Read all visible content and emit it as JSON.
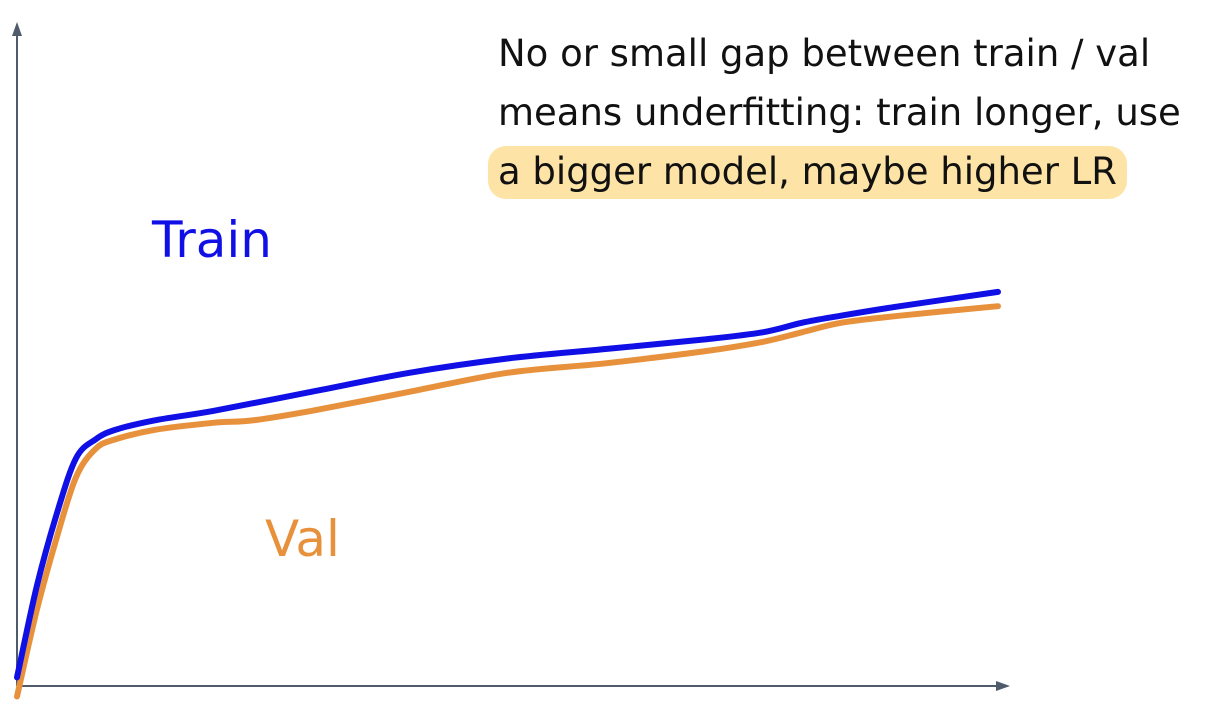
{
  "chart_data": {
    "type": "line",
    "title": "",
    "xlabel": "",
    "ylabel": "",
    "xlim": [
      0,
      100
    ],
    "ylim": [
      0,
      100
    ],
    "grid": false,
    "axes": "arrows, no ticks",
    "series": [
      {
        "name": "Train",
        "color": "#1010e6",
        "x": [
          0,
          2,
          4,
          6,
          8,
          10,
          14,
          20,
          30,
          40,
          50,
          60,
          70,
          76,
          80,
          84,
          90,
          100
        ],
        "y": [
          6,
          25,
          40,
          52,
          56,
          58,
          60,
          62,
          66,
          70,
          73,
          75,
          77,
          78.5,
          80.5,
          82,
          84,
          87
        ]
      },
      {
        "name": "Val",
        "color": "#e8913c",
        "x": [
          0,
          2,
          4,
          6,
          8,
          10,
          14,
          20,
          24,
          30,
          40,
          50,
          60,
          70,
          76,
          80,
          84,
          90,
          100
        ],
        "y": [
          2,
          20,
          35,
          48,
          54,
          56,
          58,
          59.5,
          60,
          62,
          66,
          70,
          72,
          74.5,
          76.5,
          78.5,
          80.5,
          82,
          84
        ]
      }
    ],
    "annotation": {
      "lines": [
        "No or small gap between train / val",
        "means underfitting: train longer, use",
        "a bigger model, maybe higher LR"
      ],
      "highlighted_line": 2,
      "highlight_color": "#fde4a6"
    }
  }
}
